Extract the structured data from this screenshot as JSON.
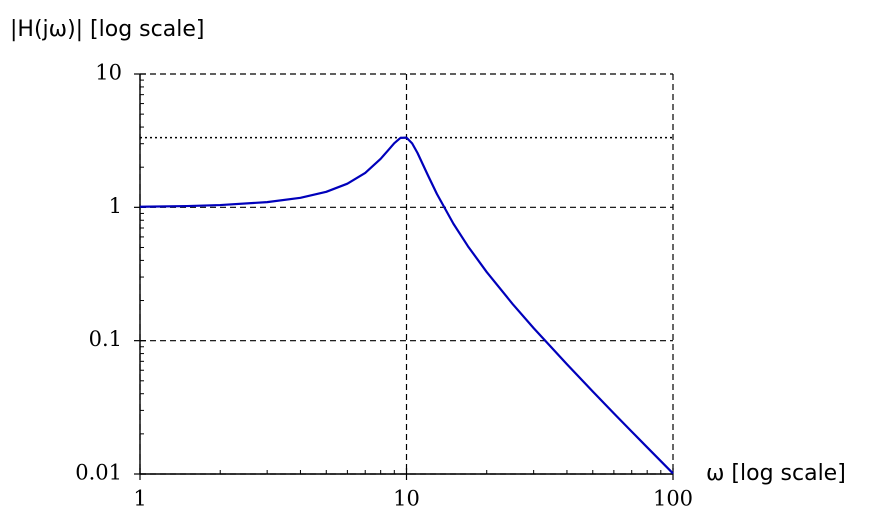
{
  "chart_data": {
    "type": "line",
    "log_x": true,
    "log_y": true,
    "grid": true,
    "ylabel": "|H(jω)| [log scale]",
    "xlabel": "ω [log scale]",
    "xlim": [
      1,
      100
    ],
    "ylim": [
      0.01,
      10
    ],
    "xticks": [
      1,
      10,
      100
    ],
    "yticks": [
      0.01,
      0.1,
      1,
      10
    ],
    "xminorticks": [
      2,
      3,
      4,
      5,
      6,
      7,
      8,
      9,
      20,
      30,
      40,
      50,
      60,
      70,
      80,
      90
    ],
    "yminorticks": [
      0.02,
      0.03,
      0.04,
      0.05,
      0.06,
      0.07,
      0.08,
      0.09,
      0.2,
      0.3,
      0.4,
      0.5,
      0.6,
      0.7,
      0.8,
      0.9,
      2,
      3,
      4,
      5,
      6,
      7,
      8,
      9
    ],
    "peak_line": 3.33,
    "x": [
      1,
      1.5,
      2,
      3,
      4,
      5,
      6,
      7,
      8,
      8.5,
      9,
      9.5,
      10,
      10.5,
      11,
      12,
      13,
      15,
      17,
      20,
      25,
      30,
      40,
      50,
      60,
      70,
      80,
      100
    ],
    "series": [
      {
        "color": "#0000bb",
        "values": [
          1.01,
          1.022,
          1.04,
          1.094,
          1.179,
          1.307,
          1.504,
          1.813,
          2.311,
          2.654,
          3.029,
          3.32,
          3.333,
          3.019,
          2.556,
          1.759,
          1.262,
          0.753,
          0.511,
          0.327,
          0.1886,
          0.1242,
          0.0665,
          0.0416,
          0.0285,
          0.0208,
          0.01586,
          0.0101
        ]
      }
    ]
  }
}
